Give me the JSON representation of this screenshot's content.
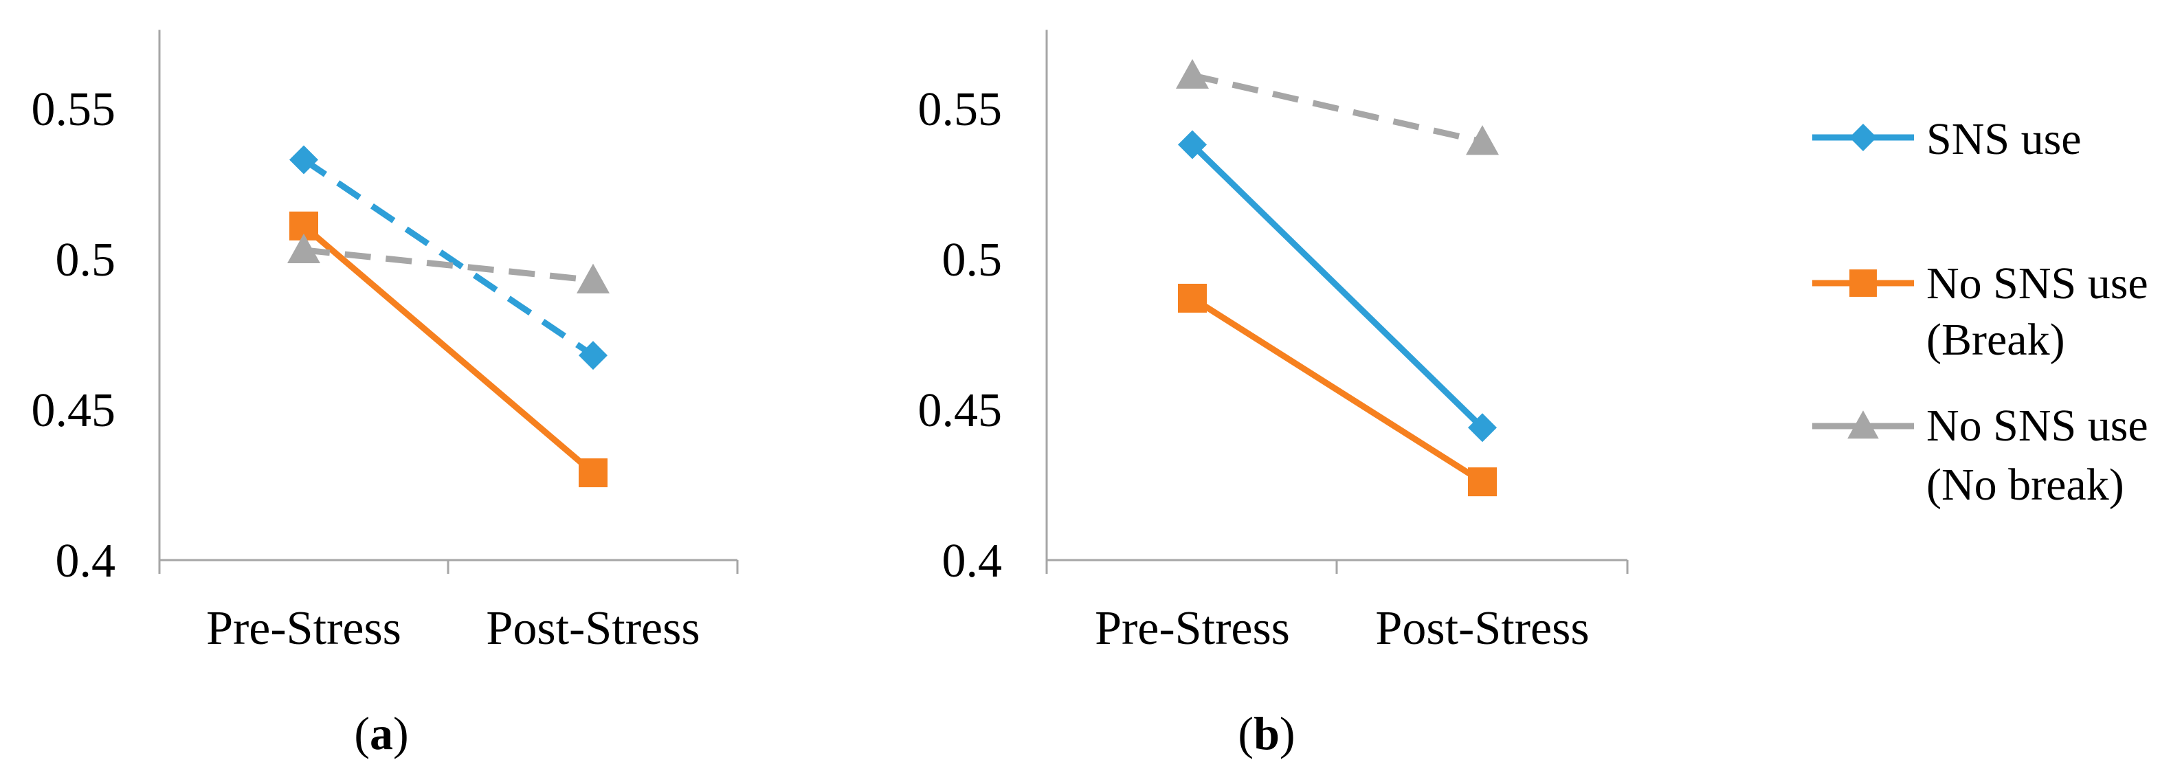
{
  "colors": {
    "sns_use": "#2E9FD8",
    "no_sns_break": "#F6801F",
    "no_sns_no_break": "#A6A6A6",
    "axis": "#A6A6A6",
    "text": "#000000"
  },
  "panel_labels": {
    "a": {
      "open": "(",
      "letter": "a",
      "close": ")"
    },
    "b": {
      "open": "(",
      "letter": "b",
      "close": ")"
    }
  },
  "legend": [
    {
      "lines": [
        "SNS use"
      ],
      "marker": "diamond",
      "color_key": "sns_use"
    },
    {
      "lines": [
        "No SNS use",
        "(Break)"
      ],
      "marker": "square",
      "color_key": "no_sns_break"
    },
    {
      "lines": [
        "No SNS use",
        "(No break)"
      ],
      "marker": "triangle",
      "color_key": "no_sns_no_break"
    }
  ],
  "chart_data": [
    {
      "type": "line",
      "panel": "a",
      "categories": [
        "Pre-Stress",
        "Post-Stress"
      ],
      "ylim": [
        0.4,
        0.575
      ],
      "yticks": [
        0.4,
        0.45,
        0.5,
        0.55
      ],
      "ytick_labels": [
        "0.4",
        "0.45",
        "0.5",
        "0.55"
      ],
      "series": [
        {
          "name": "SNS use",
          "values": [
            0.533,
            0.468
          ],
          "marker": "diamond",
          "dashed": true,
          "color_key": "sns_use"
        },
        {
          "name": "No SNS use (Break)",
          "values": [
            0.511,
            0.429
          ],
          "marker": "square",
          "dashed": false,
          "color_key": "no_sns_break"
        },
        {
          "name": "No SNS use (No break)",
          "values": [
            0.503,
            0.493
          ],
          "marker": "triangle",
          "dashed": true,
          "color_key": "no_sns_no_break"
        }
      ]
    },
    {
      "type": "line",
      "panel": "b",
      "categories": [
        "Pre-Stress",
        "Post-Stress"
      ],
      "ylim": [
        0.4,
        0.575
      ],
      "yticks": [
        0.4,
        0.45,
        0.5,
        0.55
      ],
      "ytick_labels": [
        "0.4",
        "0.45",
        "0.5",
        "0.55"
      ],
      "series": [
        {
          "name": "SNS use",
          "values": [
            0.538,
            0.444
          ],
          "marker": "diamond",
          "dashed": false,
          "color_key": "sns_use"
        },
        {
          "name": "No SNS use (Break)",
          "values": [
            0.487,
            0.426
          ],
          "marker": "square",
          "dashed": false,
          "color_key": "no_sns_break"
        },
        {
          "name": "No SNS use (No break)",
          "values": [
            0.561,
            0.539
          ],
          "marker": "triangle",
          "dashed": true,
          "color_key": "no_sns_no_break"
        }
      ]
    }
  ]
}
